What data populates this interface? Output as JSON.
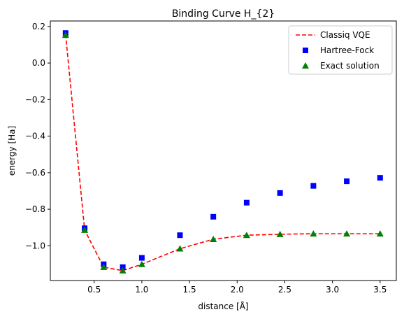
{
  "chart_data": {
    "type": "line",
    "title": "Binding Curve H_{2}",
    "xlabel": "distance [Å]",
    "ylabel": "energy [Ha]",
    "xlim": [
      0.04,
      3.67
    ],
    "ylim": [
      -1.19,
      0.23
    ],
    "xticks": [
      0.5,
      1.0,
      1.5,
      2.0,
      2.5,
      3.0,
      3.5
    ],
    "xtick_labels": [
      "0.5",
      "1.0",
      "1.5",
      "2.0",
      "2.5",
      "3.0",
      "3.5"
    ],
    "yticks": [
      -1.0,
      -0.8,
      -0.6,
      -0.4,
      -0.2,
      0.0,
      0.2
    ],
    "ytick_labels": [
      "−1.0",
      "−0.8",
      "−0.6",
      "−0.4",
      "−0.2",
      "0.0",
      "0.2"
    ],
    "grid": false,
    "legend_position": "top-right",
    "x": [
      0.2,
      0.4,
      0.6,
      0.8,
      1.0,
      1.4,
      1.75,
      2.1,
      2.45,
      2.8,
      3.15,
      3.5
    ],
    "series": [
      {
        "name": "Classiq VQE",
        "style": "dashed-line",
        "color": "#ff0000",
        "values": [
          0.158,
          -0.914,
          -1.117,
          -1.136,
          -1.101,
          -1.016,
          -0.964,
          -0.942,
          -0.937,
          -0.934,
          -0.934,
          -0.934
        ]
      },
      {
        "name": "Hartree-Fock",
        "style": "square-marker",
        "color": "#0000ff",
        "values": [
          0.164,
          -0.904,
          -1.101,
          -1.117,
          -1.066,
          -0.942,
          -0.841,
          -0.764,
          -0.711,
          -0.672,
          -0.647,
          -0.628
        ]
      },
      {
        "name": "Exact solution",
        "style": "triangle-marker",
        "color": "#008000",
        "values": [
          0.153,
          -0.914,
          -1.117,
          -1.136,
          -1.101,
          -1.016,
          -0.964,
          -0.942,
          -0.937,
          -0.934,
          -0.934,
          -0.934
        ]
      }
    ]
  }
}
